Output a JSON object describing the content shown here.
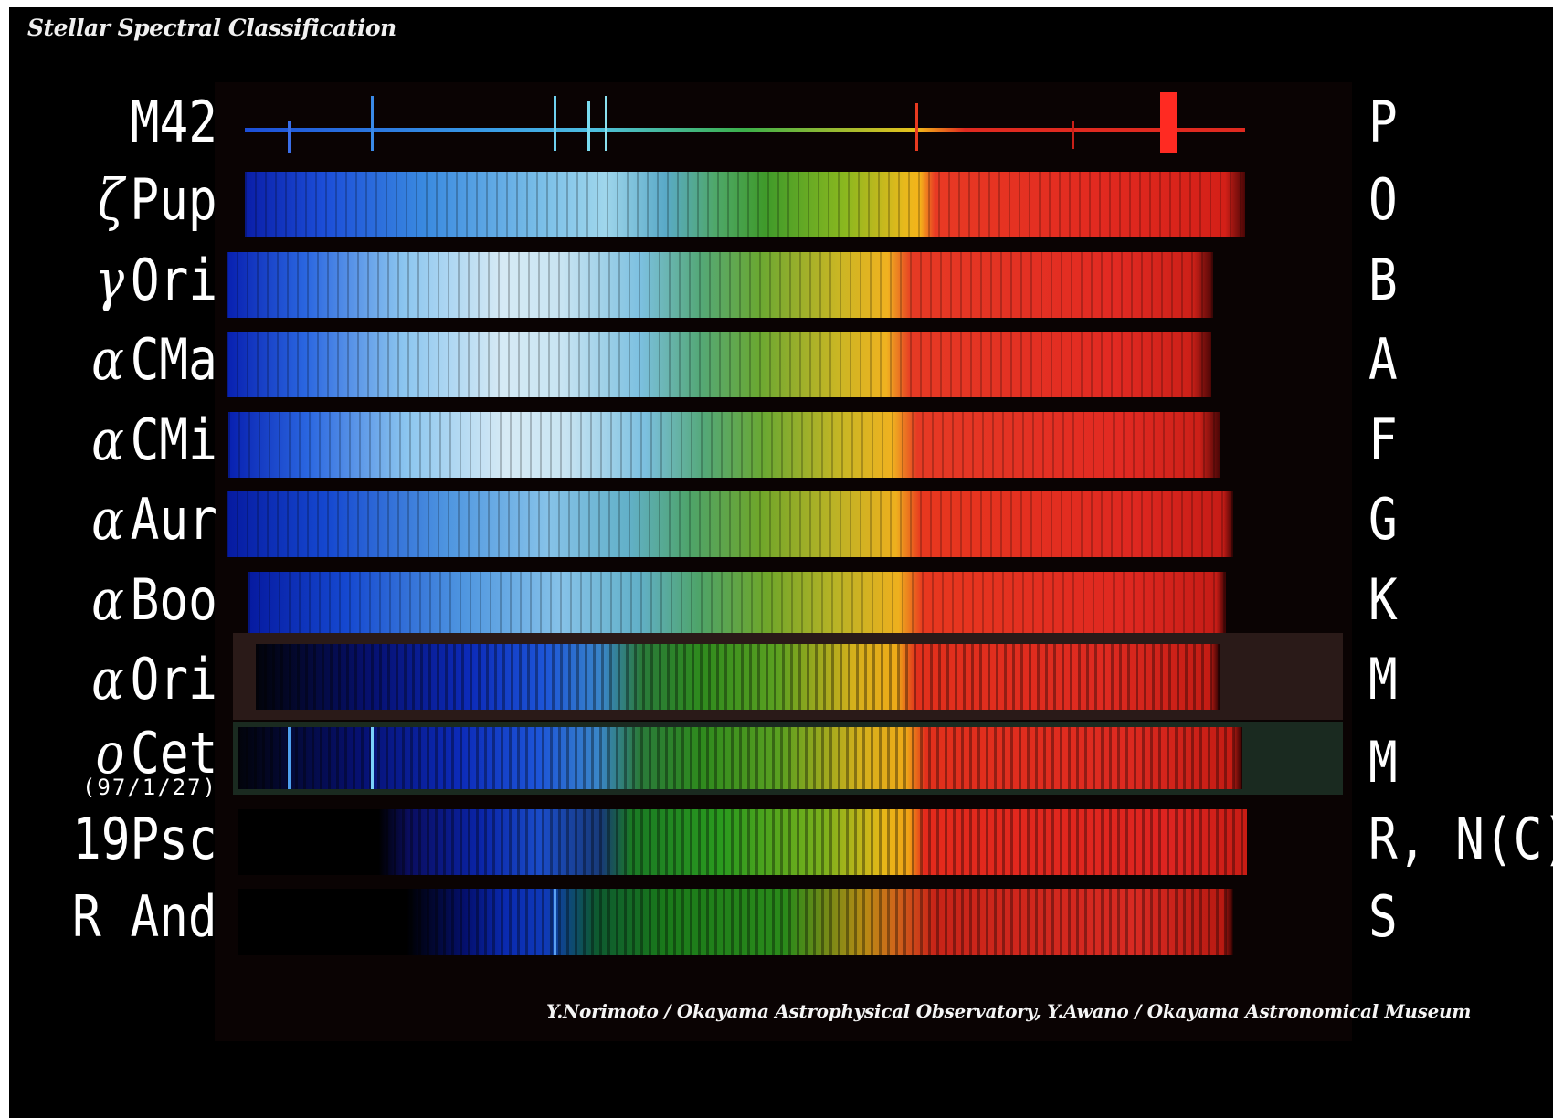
{
  "title": "Stellar Spectral Classification",
  "credit": "Y.Norimoto / Okayama Astrophysical Observatory, Y.Awano / Okayama Astronomical Museum",
  "rows": [
    {
      "greek": "",
      "star": "M42",
      "date": "",
      "class": "P"
    },
    {
      "greek": "ζ",
      "star": "Pup",
      "date": "",
      "class": "O"
    },
    {
      "greek": "γ",
      "star": "Ori",
      "date": "",
      "class": "B"
    },
    {
      "greek": "α",
      "star": "CMa",
      "date": "",
      "class": "A"
    },
    {
      "greek": "α",
      "star": "CMi",
      "date": "",
      "class": "F"
    },
    {
      "greek": "α",
      "star": "Aur",
      "date": "",
      "class": "G"
    },
    {
      "greek": "α",
      "star": "Boo",
      "date": "",
      "class": "K"
    },
    {
      "greek": "α",
      "star": "Ori",
      "date": "",
      "class": "M"
    },
    {
      "greek": "o",
      "star": "Cet",
      "date": "(97/1/27)",
      "class": "M"
    },
    {
      "greek": "",
      "star": "19Psc",
      "date": "",
      "class": "R, N(C)"
    },
    {
      "greek": "",
      "star": "R And",
      "date": "",
      "class": "S"
    }
  ]
}
